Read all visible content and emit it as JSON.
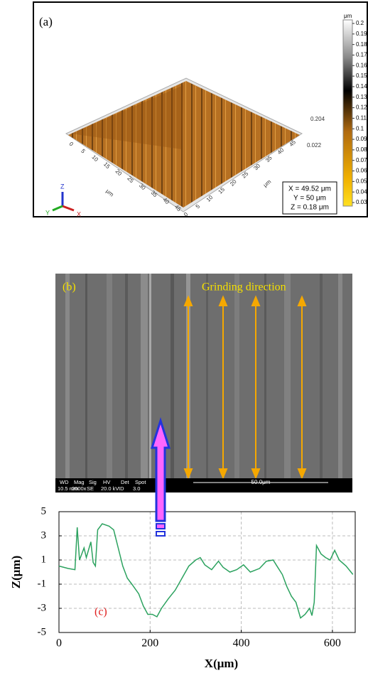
{
  "panel_a": {
    "label": "(a)",
    "colorbar_unit": "μm",
    "colorbar_ticks": [
      "0.2",
      "0.19",
      "0.18",
      "0.17",
      "0.16",
      "0.15",
      "0.14",
      "0.13",
      "0.12",
      "0.11",
      "0.1",
      "0.09",
      "0.08",
      "0.07",
      "0.06",
      "0.05",
      "0.04",
      "0.03"
    ],
    "left_axis_ticks": [
      "0",
      "5",
      "10",
      "15",
      "20",
      "25",
      "30",
      "35",
      "40",
      "45"
    ],
    "right_axis_ticks": [
      "0",
      "5",
      "10",
      "15",
      "20",
      "25",
      "30",
      "35",
      "40",
      "45"
    ],
    "left_axis_unit": "μm",
    "right_axis_unit": "μm",
    "z_max": "0.204",
    "z_min": "0.022",
    "readout": [
      "X = 49.52 μm",
      "Y = 50 μm",
      "Z = 0.18 μm"
    ],
    "triad": [
      "Z",
      "Y",
      "X"
    ]
  },
  "panel_b": {
    "label": "(b)",
    "annotation": "Grinding direction",
    "info_headers": [
      "WD",
      "Mag",
      "Sig",
      "HV",
      "Det",
      "Spot"
    ],
    "info_values": [
      "10.5 mm",
      "2000x",
      "SE",
      "20.0 kV",
      "ID",
      "3.0"
    ],
    "scale_bar": "50.0μm"
  },
  "chart_data": {
    "type": "line",
    "annotation": "(c)",
    "x_label": "X(μm)",
    "y_label": "Z(μm)",
    "xlim": [
      0,
      650
    ],
    "ylim": [
      -5,
      5
    ],
    "xticks": [
      0,
      200,
      400,
      600
    ],
    "yticks": [
      -5,
      -3,
      -1,
      1,
      3,
      5
    ],
    "grid": true,
    "series": [
      {
        "color": "#2ca25f",
        "x": [
          0,
          20,
          35,
          40,
          45,
          50,
          55,
          60,
          70,
          75,
          80,
          85,
          95,
          110,
          120,
          130,
          140,
          150,
          160,
          175,
          185,
          195,
          205,
          215,
          225,
          240,
          255,
          270,
          285,
          300,
          310,
          320,
          335,
          350,
          360,
          375,
          390,
          405,
          420,
          440,
          455,
          470,
          480,
          490,
          500,
          510,
          520,
          530,
          540,
          550,
          555,
          560,
          565,
          575,
          585,
          595,
          605,
          615,
          630,
          645
        ],
        "values": [
          0.5,
          0.3,
          0.2,
          3.7,
          1.0,
          1.5,
          2.0,
          1.2,
          2.5,
          0.8,
          0.5,
          3.5,
          4.0,
          3.8,
          3.5,
          2.0,
          0.5,
          -0.5,
          -1.0,
          -1.8,
          -2.8,
          -3.5,
          -3.5,
          -3.7,
          -3.0,
          -2.2,
          -1.5,
          -0.5,
          0.5,
          1.0,
          1.2,
          0.6,
          0.2,
          0.9,
          0.4,
          0.0,
          0.2,
          0.6,
          0.0,
          0.3,
          0.9,
          1.0,
          0.4,
          -0.2,
          -1.2,
          -2.0,
          -2.5,
          -3.8,
          -3.5,
          -3.0,
          -3.6,
          -2.5,
          2.2,
          1.5,
          1.2,
          1.0,
          1.8,
          1.0,
          0.5,
          -0.2
        ]
      }
    ]
  }
}
